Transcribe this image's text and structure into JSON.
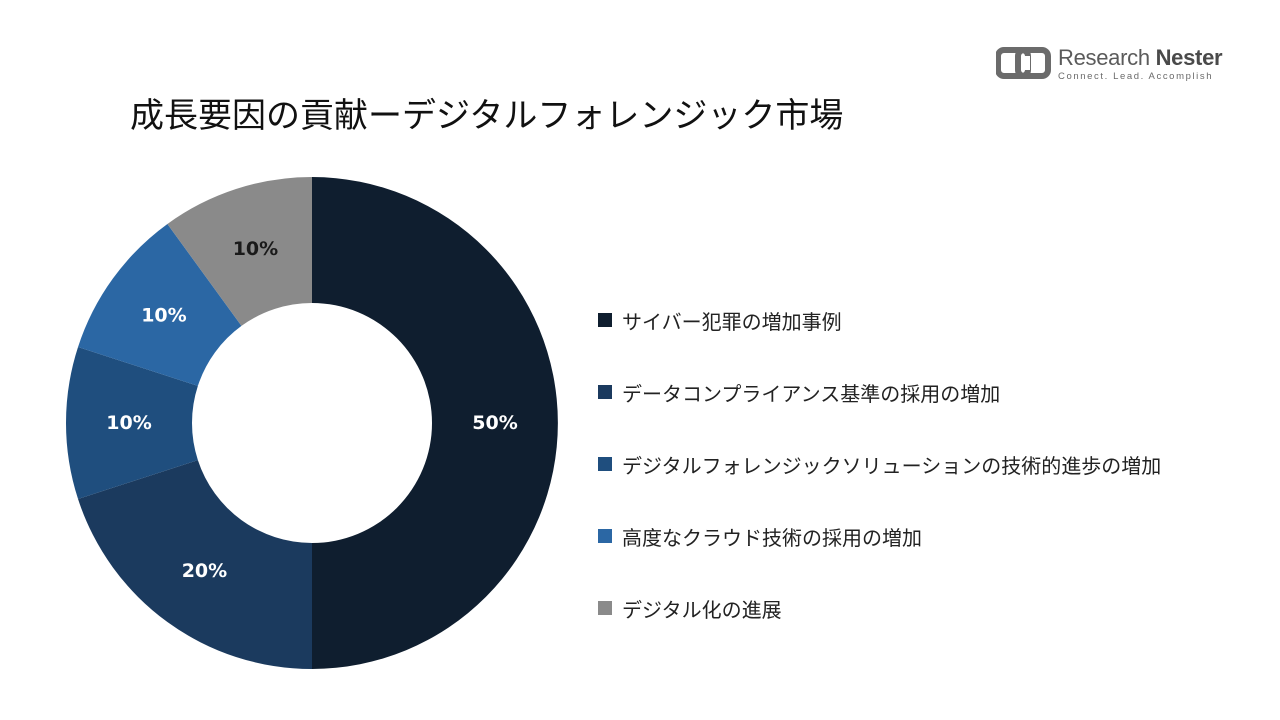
{
  "title": "成長要因の貢献ーデジタルフォレンジック市場",
  "logo": {
    "name_part1": "Research",
    "name_part2": "Nester",
    "tagline": "Connect. Lead. Accomplish"
  },
  "chart_data": {
    "type": "pie",
    "variant": "donut",
    "title": "成長要因の貢献ーデジタルフォレンジック市場",
    "legend_position": "right",
    "slices": [
      {
        "label": "サイバー犯罪の増加事例",
        "value": 50,
        "display": "50%",
        "color": "#0f1e2f",
        "label_color": "#ffffff"
      },
      {
        "label": "データコンプライアンス基準の採用の増加",
        "value": 20,
        "display": "20%",
        "color": "#1b3a5e",
        "label_color": "#ffffff"
      },
      {
        "label": "デジタルフォレンジックソリューションの技術的進歩の増加",
        "value": 10,
        "display": "10%",
        "color": "#1f4e7e",
        "label_color": "#ffffff"
      },
      {
        "label": "高度なクラウド技術の採用の増加",
        "value": 10,
        "display": "10%",
        "color": "#2b67a4",
        "label_color": "#ffffff"
      },
      {
        "label": "デジタル化の進展",
        "value": 10,
        "display": "10%",
        "color": "#8a8a8a",
        "label_color": "#1a1a1a"
      }
    ]
  }
}
